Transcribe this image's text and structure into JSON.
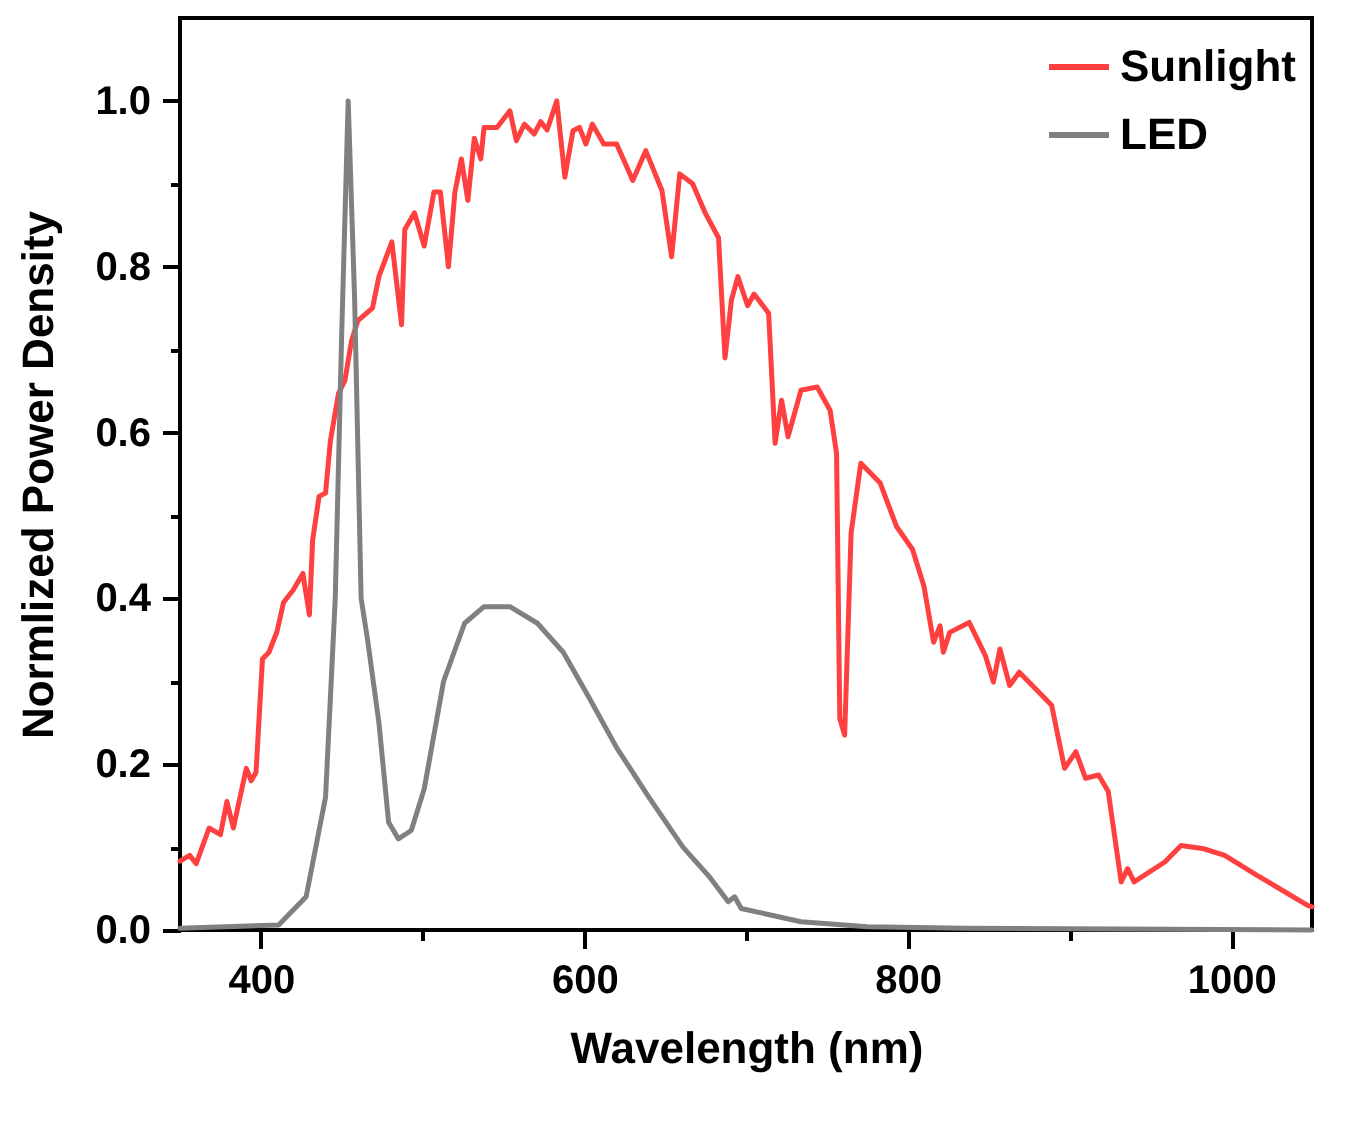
{
  "chart_data": {
    "type": "line",
    "xlabel": "Wavelength (nm)",
    "ylabel": "Normlized Power Density",
    "xlim": [
      350,
      1050
    ],
    "ylim": [
      0,
      1.1
    ],
    "xticks": [
      400,
      {
        "value": 500,
        "label": null
      },
      600,
      {
        "value": 700,
        "label": null
      },
      800,
      {
        "value": 900,
        "label": null
      },
      1000
    ],
    "yticks": [
      {
        "value": 0,
        "label": "0.0"
      },
      {
        "value": 0.1,
        "label": null
      },
      {
        "value": 0.2,
        "label": "0.2"
      },
      {
        "value": 0.3,
        "label": null
      },
      {
        "value": 0.4,
        "label": "0.4"
      },
      {
        "value": 0.5,
        "label": null
      },
      {
        "value": 0.6,
        "label": "0.6"
      },
      {
        "value": 0.7,
        "label": null
      },
      {
        "value": 0.8,
        "label": "0.8"
      },
      {
        "value": 0.9,
        "label": null
      },
      {
        "value": 1.0,
        "label": "1.0"
      }
    ],
    "grid": false,
    "legend": "top right",
    "line_style": "solid",
    "marker": "none",
    "series": [
      {
        "name": "Sunlight",
        "color": "#ff4040",
        "x": [
          350,
          356,
          360,
          368,
          375,
          379,
          383,
          391,
          394,
          397,
          401,
          405,
          410,
          414,
          420,
          426,
          430,
          432,
          436,
          440,
          443,
          448,
          452,
          456,
          460,
          469,
          473,
          481,
          487,
          489,
          495,
          501,
          507,
          511,
          516,
          520,
          524,
          528,
          532,
          536,
          538,
          546,
          554,
          558,
          563,
          569,
          573,
          577,
          583,
          588,
          593,
          597,
          601,
          605,
          612,
          620,
          630,
          638,
          648,
          654,
          659,
          667,
          675,
          683,
          687,
          691,
          695,
          701,
          705,
          714,
          718,
          722,
          726,
          734,
          744,
          752,
          756,
          758,
          761,
          765,
          771,
          783,
          793,
          803,
          810,
          816,
          820,
          822,
          826,
          838,
          848,
          853,
          857,
          863,
          869,
          889,
          897,
          904,
          910,
          918,
          924,
          932,
          936,
          940,
          959,
          969,
          983,
          996,
          1016,
          1047,
          1050
        ],
        "values": [
          0.083,
          0.09,
          0.08,
          0.123,
          0.115,
          0.155,
          0.123,
          0.195,
          0.18,
          0.19,
          0.327,
          0.335,
          0.36,
          0.395,
          0.41,
          0.43,
          0.38,
          0.47,
          0.523,
          0.527,
          0.59,
          0.647,
          0.663,
          0.71,
          0.735,
          0.75,
          0.788,
          0.83,
          0.73,
          0.845,
          0.865,
          0.825,
          0.89,
          0.89,
          0.8,
          0.89,
          0.93,
          0.88,
          0.955,
          0.93,
          0.968,
          0.968,
          0.988,
          0.952,
          0.972,
          0.96,
          0.975,
          0.965,
          1.0,
          0.908,
          0.964,
          0.968,
          0.948,
          0.972,
          0.948,
          0.948,
          0.904,
          0.94,
          0.892,
          0.812,
          0.912,
          0.9,
          0.864,
          0.835,
          0.69,
          0.76,
          0.788,
          0.753,
          0.767,
          0.744,
          0.587,
          0.639,
          0.595,
          0.651,
          0.655,
          0.627,
          0.575,
          0.255,
          0.235,
          0.479,
          0.563,
          0.539,
          0.487,
          0.459,
          0.415,
          0.347,
          0.367,
          0.335,
          0.359,
          0.371,
          0.331,
          0.299,
          0.339,
          0.295,
          0.311,
          0.271,
          0.195,
          0.215,
          0.183,
          0.187,
          0.167,
          0.058,
          0.074,
          0.058,
          0.082,
          0.102,
          0.098,
          0.09,
          0.066,
          0.03,
          0.028
        ]
      },
      {
        "name": "LED",
        "color": "#808080",
        "x": [
          350,
          411,
          428,
          440,
          446,
          450,
          454,
          458,
          462,
          466,
          473,
          479,
          485,
          493,
          501,
          513,
          526,
          538,
          554,
          571,
          587,
          603,
          620,
          640,
          661,
          677,
          689,
          693,
          697,
          734,
          775,
          836,
          1050
        ],
        "values": [
          0.002,
          0.006,
          0.04,
          0.16,
          0.4,
          0.72,
          1.0,
          0.76,
          0.4,
          0.35,
          0.25,
          0.13,
          0.11,
          0.12,
          0.17,
          0.3,
          0.37,
          0.39,
          0.39,
          0.37,
          0.335,
          0.28,
          0.22,
          0.16,
          0.1,
          0.065,
          0.034,
          0.04,
          0.026,
          0.01,
          0.004,
          0.002,
          0
        ]
      }
    ]
  }
}
